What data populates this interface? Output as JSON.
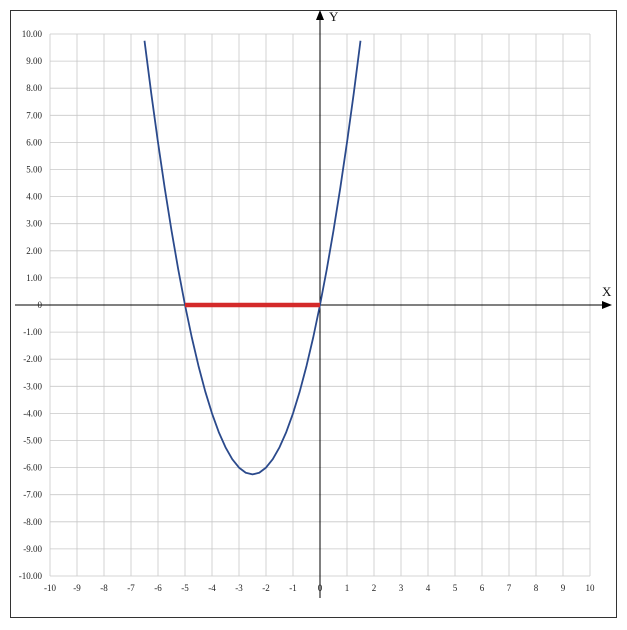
{
  "chart_data": {
    "type": "line",
    "title": "",
    "xlabel": "X",
    "ylabel": "Y",
    "xlim": [
      -10,
      10
    ],
    "ylim": [
      -10,
      10
    ],
    "grid": true,
    "x_ticks": [
      "-10",
      "-9",
      "-8",
      "-7",
      "-6",
      "-5",
      "-4",
      "-3",
      "-2",
      "-1",
      "0",
      "1",
      "2",
      "3",
      "4",
      "5",
      "6",
      "7",
      "8",
      "9",
      "10"
    ],
    "y_ticks": [
      "10.00",
      "9.00",
      "8.00",
      "7.00",
      "6.00",
      "5.00",
      "4.00",
      "3.00",
      "2.00",
      "1.00",
      "0",
      "-1.00",
      "-2.00",
      "-3.00",
      "-4.00",
      "-5.00",
      "-6.00",
      "-7.00",
      "-8.00",
      "-9.00",
      "-10.00"
    ],
    "series": [
      {
        "color": "#2b4a8c",
        "x": [
          -6.5,
          -6.25,
          -6.0,
          -5.75,
          -5.5,
          -5.25,
          -5.0,
          -4.75,
          -4.5,
          -4.25,
          -4.0,
          -3.75,
          -3.5,
          -3.25,
          -3.0,
          -2.75,
          -2.5,
          -2.25,
          -2.0,
          -1.75,
          -1.5,
          -1.25,
          -1.0,
          -0.75,
          -0.5,
          -0.25,
          0.0,
          0.25,
          0.5,
          0.75,
          1.0,
          1.25,
          1.5
        ],
        "y": [
          9.75,
          7.81,
          6.0,
          4.31,
          2.75,
          1.31,
          0.0,
          -1.19,
          -2.25,
          -3.19,
          -4.0,
          -4.69,
          -5.25,
          -5.69,
          -6.0,
          -6.19,
          -6.25,
          -6.19,
          -6.0,
          -5.69,
          -5.25,
          -4.69,
          -4.0,
          -3.19,
          -2.25,
          -1.19,
          0.0,
          1.31,
          2.75,
          4.31,
          6.0,
          7.81,
          9.75
        ]
      }
    ],
    "highlight_segment": {
      "color": "#d42a2a",
      "x": [
        -5,
        0
      ],
      "y": 0
    }
  }
}
